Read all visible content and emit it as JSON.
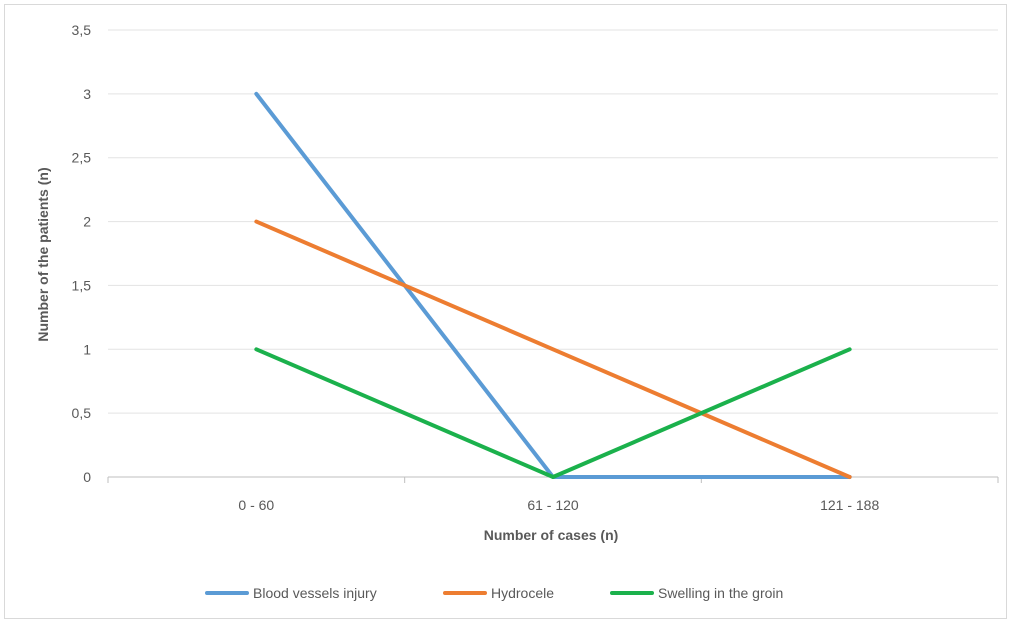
{
  "chart_data": {
    "type": "line",
    "title": "",
    "xlabel": "Number of cases (n)",
    "ylabel": "Number of the patients (n)",
    "categories": [
      "0 - 60",
      "61 - 120",
      "121 - 188"
    ],
    "ylim": [
      0,
      3.5
    ],
    "yticks": [
      0,
      0.5,
      1,
      1.5,
      2,
      2.5,
      3,
      3.5
    ],
    "ytick_labels": [
      "0",
      "0,5",
      "1",
      "1,5",
      "2",
      "2,5",
      "3",
      "3,5"
    ],
    "grid": true,
    "legend": "bottom",
    "series": [
      {
        "name": "Blood vessels injury",
        "values": [
          3,
          0,
          0
        ],
        "color": "#5B9BD5"
      },
      {
        "name": "Hydrocele",
        "values": [
          2,
          1,
          0
        ],
        "color": "#ED7D31"
      },
      {
        "name": "Swelling in the groin",
        "values": [
          1,
          0,
          1
        ],
        "color": "#1BB14C"
      }
    ]
  }
}
